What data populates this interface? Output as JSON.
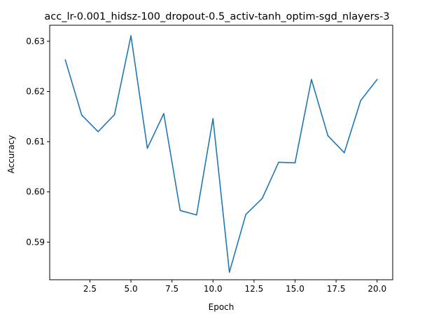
{
  "chart_data": {
    "type": "line",
    "title": "acc_lr-0.001_hidsz-100_dropout-0.5_activ-tanh_optim-sgd_nlayers-3",
    "xlabel": "Epoch",
    "ylabel": "Accuracy",
    "xlim": [
      0.05,
      20.95
    ],
    "ylim": [
      0.5825,
      0.6332
    ],
    "x_ticks": [
      2.5,
      5.0,
      7.5,
      10.0,
      12.5,
      15.0,
      17.5,
      20.0
    ],
    "x_tick_labels": [
      "2.5",
      "5.0",
      "7.5",
      "10.0",
      "12.5",
      "15.0",
      "17.5",
      "20.0"
    ],
    "y_ticks": [
      0.59,
      0.6,
      0.61,
      0.62,
      0.63
    ],
    "y_tick_labels": [
      "0.59",
      "0.60",
      "0.61",
      "0.62",
      "0.63"
    ],
    "grid": false,
    "series": [
      {
        "color": "#1f77b4",
        "x": [
          1,
          2,
          3,
          4,
          5,
          6,
          7,
          8,
          9,
          10,
          11,
          12,
          13,
          14,
          15,
          16,
          17,
          18,
          19,
          20
        ],
        "values": [
          0.6263,
          0.6153,
          0.612,
          0.6154,
          0.6311,
          0.6087,
          0.6156,
          0.5963,
          0.5954,
          0.6146,
          0.584,
          0.5955,
          0.5987,
          0.6059,
          0.6058,
          0.6224,
          0.6112,
          0.6078,
          0.6182,
          0.6224
        ]
      }
    ]
  }
}
